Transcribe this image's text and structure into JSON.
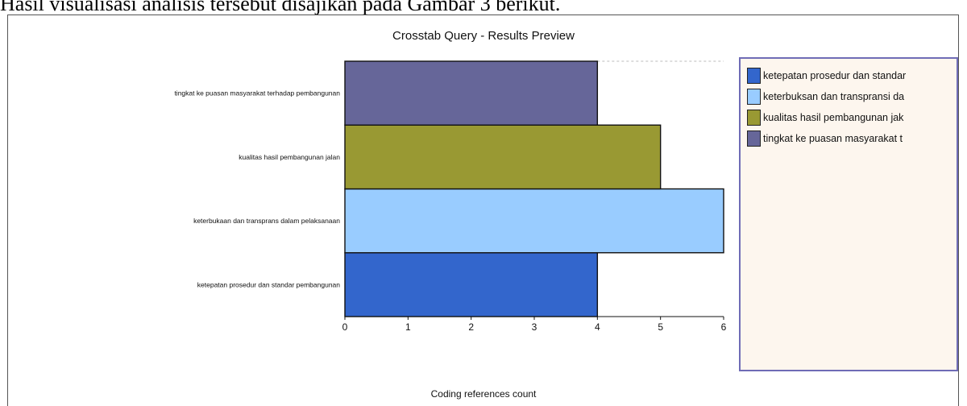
{
  "caption": "Hasil visualisasi analisis tersebut disajikan pada Gambar 3 berikut.",
  "chart_data": {
    "type": "bar",
    "orientation": "horizontal",
    "title": "Crosstab Query - Results Preview",
    "xlabel": "Coding references count",
    "ylabel": "",
    "xlim": [
      0,
      6
    ],
    "xticks": [
      "0",
      "1",
      "2",
      "3",
      "4",
      "5",
      "6"
    ],
    "grid": false,
    "legend_position": "right",
    "categories": [
      "ketepatan prosedur dan standar pembangunan",
      "keterbukaan dan transprans  dalam pelaksanaan",
      "kualitas hasil pembangunan jalan",
      "tingkat ke puasan masyarakat terhadap pembangunan"
    ],
    "values": [
      4,
      6,
      5,
      4
    ],
    "colors": [
      "#3366cc",
      "#99ccff",
      "#999933",
      "#666699"
    ],
    "legend": [
      {
        "label": "ketepatan prosedur dan standar",
        "color": "#3366cc"
      },
      {
        "label": "keterbuksan dan transpransi da",
        "color": "#99ccff"
      },
      {
        "label": "kualitas hasil pembangunan jak",
        "color": "#999933"
      },
      {
        "label": "tingkat ke puasan masyarakat t",
        "color": "#666699"
      }
    ]
  }
}
